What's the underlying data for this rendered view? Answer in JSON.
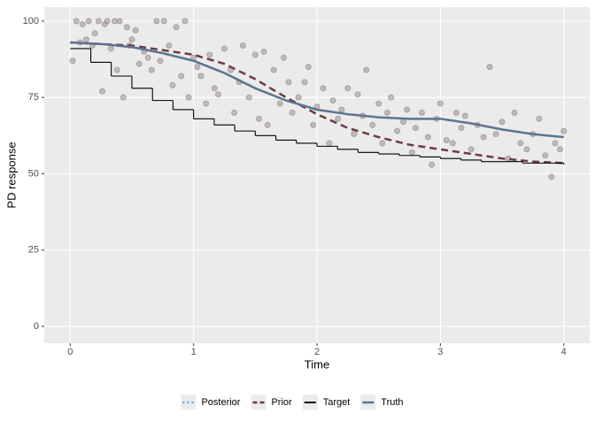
{
  "chart_data": {
    "type": "line",
    "x_label": "Time",
    "y_label": "PD response",
    "xlim": [
      -0.21,
      4.21
    ],
    "ylim": [
      -5.5,
      104.6
    ],
    "xticks": [
      0,
      1,
      2,
      3,
      4
    ],
    "yticks": [
      0,
      25,
      50,
      75,
      100
    ],
    "grid": true,
    "legend": "bottom",
    "points": {
      "color": "#a89898",
      "x": [
        0.02,
        0.05,
        0.08,
        0.1,
        0.13,
        0.15,
        0.18,
        0.2,
        0.23,
        0.26,
        0.28,
        0.3,
        0.33,
        0.36,
        0.38,
        0.4,
        0.43,
        0.46,
        0.48,
        0.5,
        0.53,
        0.56,
        0.6,
        0.63,
        0.66,
        0.7,
        0.73,
        0.76,
        0.8,
        0.83,
        0.86,
        0.9,
        0.93,
        0.96,
        1.0,
        1.03,
        1.06,
        1.1,
        1.13,
        1.17,
        1.2,
        1.25,
        1.3,
        1.33,
        1.37,
        1.4,
        1.45,
        1.5,
        1.53,
        1.57,
        1.6,
        1.65,
        1.7,
        1.73,
        1.77,
        1.8,
        1.85,
        1.9,
        1.93,
        1.97,
        2.0,
        2.05,
        2.1,
        2.13,
        2.17,
        2.2,
        2.25,
        2.3,
        2.33,
        2.37,
        2.4,
        2.45,
        2.5,
        2.53,
        2.57,
        2.6,
        2.65,
        2.7,
        2.73,
        2.77,
        2.8,
        2.85,
        2.9,
        2.93,
        2.97,
        3.0,
        3.05,
        3.1,
        3.13,
        3.17,
        3.2,
        3.25,
        3.3,
        3.35,
        3.4,
        3.45,
        3.5,
        3.55,
        3.6,
        3.65,
        3.7,
        3.75,
        3.8,
        3.85,
        3.9,
        3.93,
        3.97,
        4.0
      ],
      "values": [
        87,
        100,
        93,
        99,
        94,
        100,
        92,
        96,
        100,
        77,
        99,
        100,
        91,
        100,
        84,
        100,
        75,
        98,
        92,
        94,
        97,
        86,
        90,
        88,
        84,
        100,
        87,
        100,
        92,
        79,
        98,
        82,
        100,
        75,
        88,
        85,
        82,
        73,
        89,
        78,
        76,
        91,
        84,
        70,
        80,
        92,
        75,
        89,
        68,
        90,
        66,
        84,
        73,
        88,
        80,
        70,
        75,
        80,
        85,
        66,
        72,
        78,
        60,
        74,
        68,
        71,
        78,
        63,
        76,
        69,
        84,
        66,
        73,
        60,
        70,
        75,
        64,
        67,
        71,
        57,
        65,
        70,
        62,
        53,
        68,
        73,
        61,
        60,
        70,
        65,
        69,
        58,
        66,
        62,
        85,
        63,
        67,
        55,
        70,
        60,
        58,
        63,
        68,
        56,
        49,
        60,
        58,
        64
      ]
    },
    "series": [
      {
        "name": "Posterior",
        "color": "#56b4e9",
        "linetype": "dotted",
        "x": [],
        "values": []
      },
      {
        "name": "Prior",
        "color": "#6e3b42",
        "linetype": "dashed",
        "x": [
          0,
          0.25,
          0.5,
          0.75,
          1,
          1.25,
          1.5,
          1.75,
          2,
          2.25,
          2.5,
          2.75,
          3,
          3.25,
          3.5,
          3.75,
          4
        ],
        "values": [
          93,
          92.5,
          92,
          90.5,
          89,
          86,
          81,
          75,
          69.5,
          65,
          62,
          59.5,
          58,
          56.5,
          55,
          54,
          53.5
        ]
      },
      {
        "name": "Target",
        "color": "#000000",
        "linetype": "step",
        "x": [
          0,
          0.167,
          0.333,
          0.5,
          0.667,
          0.833,
          1,
          1.167,
          1.333,
          1.5,
          1.667,
          1.833,
          2,
          2.167,
          2.333,
          2.5,
          2.667,
          2.833,
          3,
          3.167,
          3.333,
          3.5,
          3.667,
          3.833,
          4
        ],
        "values": [
          91,
          86.5,
          82,
          78,
          74,
          71,
          68,
          66,
          64,
          62.5,
          61,
          60,
          59,
          58,
          57,
          56.5,
          56,
          55.5,
          55,
          54.5,
          54,
          54,
          53.5,
          53.5,
          53
        ]
      },
      {
        "name": "Truth",
        "color": "#5b7590",
        "linetype": "solid",
        "x": [
          0,
          0.25,
          0.5,
          0.75,
          1,
          1.25,
          1.5,
          1.75,
          2,
          2.25,
          2.5,
          2.75,
          3,
          3.25,
          3.5,
          3.75,
          4
        ],
        "values": [
          93,
          92.5,
          91.5,
          89.5,
          87,
          83,
          78,
          74,
          71,
          69.5,
          68.5,
          68,
          68,
          66.5,
          64.5,
          63,
          62
        ]
      }
    ]
  }
}
